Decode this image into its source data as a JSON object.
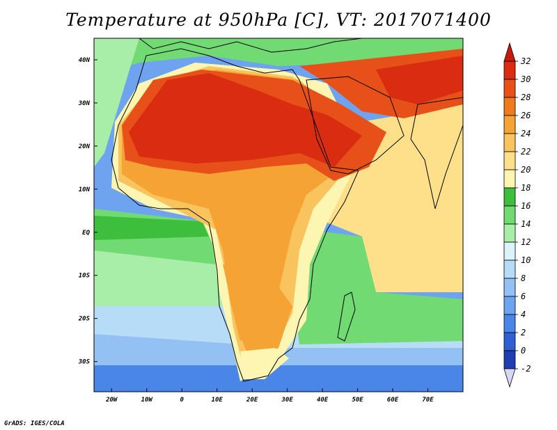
{
  "title": "Temperature at 950hPa [C], VT: 2017071400",
  "credit": "GrADS: IGES/COLA",
  "map": {
    "lon_range": [
      -25,
      80
    ],
    "lat_range": [
      -37,
      45
    ],
    "x_ticks": [
      "20W",
      "10W",
      "0",
      "10E",
      "20E",
      "30E",
      "40E",
      "50E",
      "60E",
      "70E"
    ],
    "x_tick_values": [
      -20,
      -10,
      0,
      10,
      20,
      30,
      40,
      50,
      60,
      70
    ],
    "y_ticks": [
      "40N",
      "30N",
      "20N",
      "10N",
      "EQ",
      "10S",
      "20S",
      "30S"
    ],
    "y_tick_values": [
      40,
      30,
      20,
      10,
      0,
      -10,
      -20,
      -30
    ]
  },
  "colorbar": {
    "labels": [
      "32",
      "30",
      "28",
      "26",
      "24",
      "22",
      "20",
      "18",
      "16",
      "14",
      "12",
      "10",
      "8",
      "6",
      "4",
      "2",
      "0",
      "-2"
    ],
    "levels": [
      -2,
      0,
      2,
      4,
      6,
      8,
      10,
      12,
      14,
      16,
      18,
      20,
      22,
      24,
      26,
      28,
      30,
      32
    ],
    "colors": [
      "#0c1c8c",
      "#1f3eb5",
      "#2f5fd3",
      "#4a86e8",
      "#6ea4ef",
      "#93c1f4",
      "#b7dcf8",
      "#dcf3fa",
      "#a8eda8",
      "#72da72",
      "#3dbf3d",
      "#fdf6b2",
      "#fde089",
      "#f9c45e",
      "#f6a336",
      "#f07b1e",
      "#e8501a",
      "#d92c10",
      "#c71a0a"
    ],
    "under_color": "#d9d6f4",
    "over_color": "#c71a0a"
  }
}
